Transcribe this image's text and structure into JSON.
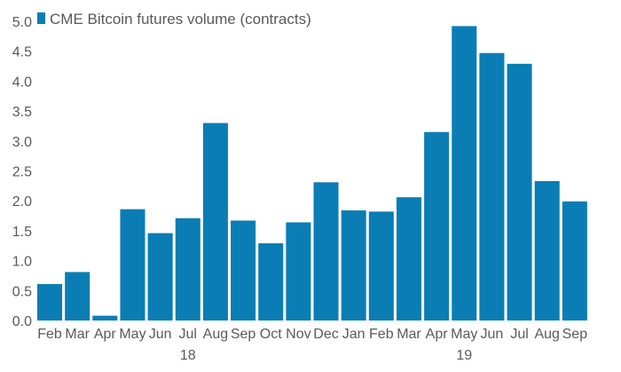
{
  "chart_data": {
    "type": "bar",
    "title": "",
    "xlabel": "",
    "ylabel": "",
    "ylim": [
      0,
      5
    ],
    "yticks": [
      "0.0",
      "0.5",
      "1.0",
      "1.5",
      "2.0",
      "2.5",
      "3.0",
      "3.5",
      "4.0",
      "4.5",
      "5.0"
    ],
    "grid": false,
    "legend_position": "top-left",
    "bar_color": "#0a7db5",
    "categories": [
      "Feb",
      "Mar",
      "Apr",
      "May",
      "Jun",
      "Jul",
      "Aug",
      "Sep",
      "Oct",
      "Nov",
      "Dec",
      "Jan",
      "Feb",
      "Mar",
      "Apr",
      "May",
      "Jun",
      "Jul",
      "Aug",
      "Sep"
    ],
    "year_groups": [
      {
        "label": "18",
        "start": 0,
        "end": 10
      },
      {
        "label": "19",
        "start": 11,
        "end": 19
      }
    ],
    "series": [
      {
        "name": "CME Bitcoin futures volume (contracts)",
        "values": [
          0.61,
          0.81,
          0.08,
          1.86,
          1.46,
          1.71,
          3.3,
          1.67,
          1.29,
          1.64,
          2.31,
          1.84,
          1.82,
          2.06,
          3.15,
          4.92,
          4.47,
          4.29,
          2.33,
          1.99
        ]
      }
    ]
  }
}
